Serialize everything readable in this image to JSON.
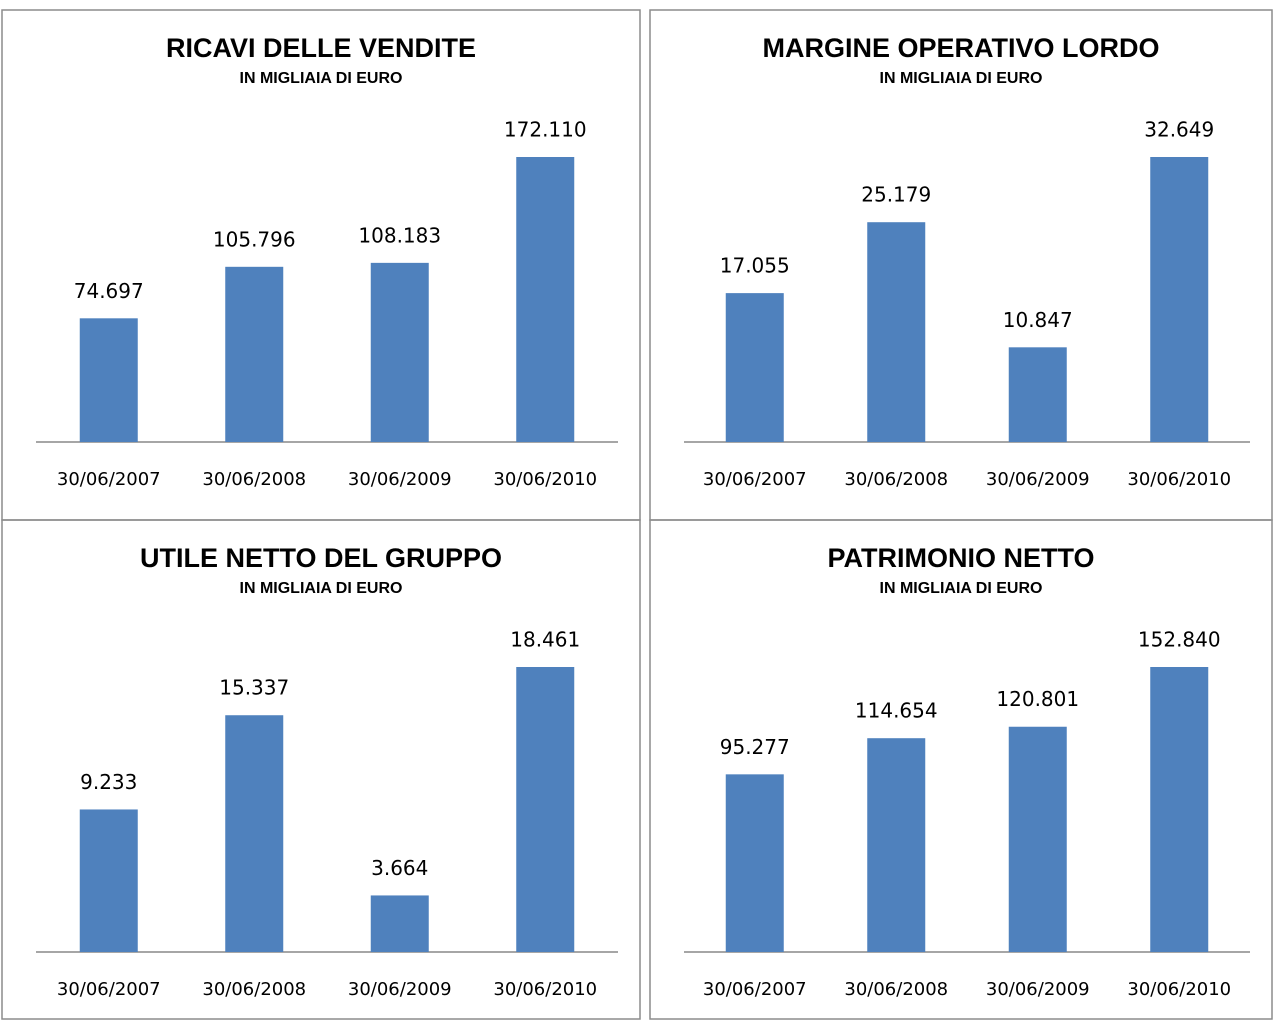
{
  "chart_data": [
    {
      "type": "bar",
      "title": "RICAVI DELLE VENDITE",
      "subtitle": "IN MIGLIAIA DI EURO",
      "categories": [
        "30/06/2007",
        "30/06/2008",
        "30/06/2009",
        "30/06/2010"
      ],
      "values": [
        74697,
        105796,
        108183,
        172110
      ],
      "value_labels": [
        "74.697",
        "105.796",
        "108.183",
        "172.110"
      ],
      "color": "#4f81bd"
    },
    {
      "type": "bar",
      "title": "MARGINE OPERATIVO LORDO",
      "subtitle": "IN MIGLIAIA DI EURO",
      "categories": [
        "30/06/2007",
        "30/06/2008",
        "30/06/2009",
        "30/06/2010"
      ],
      "values": [
        17055,
        25179,
        10847,
        32649
      ],
      "value_labels": [
        "17.055",
        "25.179",
        "10.847",
        "32.649"
      ],
      "color": "#4f81bd"
    },
    {
      "type": "bar",
      "title": "UTILE NETTO DEL GRUPPO",
      "subtitle": "IN MIGLIAIA DI EURO",
      "categories": [
        "30/06/2007",
        "30/06/2008",
        "30/06/2009",
        "30/06/2010"
      ],
      "values": [
        9233,
        15337,
        3664,
        18461
      ],
      "value_labels": [
        "9.233",
        "15.337",
        "3.664",
        "18.461"
      ],
      "color": "#4f81bd"
    },
    {
      "type": "bar",
      "title": "PATRIMONIO NETTO",
      "subtitle": "IN MIGLIAIA DI EURO",
      "categories": [
        "30/06/2007",
        "30/06/2008",
        "30/06/2009",
        "30/06/2010"
      ],
      "values": [
        95277,
        114654,
        120801,
        152840
      ],
      "value_labels": [
        "95.277",
        "114.654",
        "120.801",
        "152.840"
      ],
      "color": "#4f81bd"
    }
  ]
}
